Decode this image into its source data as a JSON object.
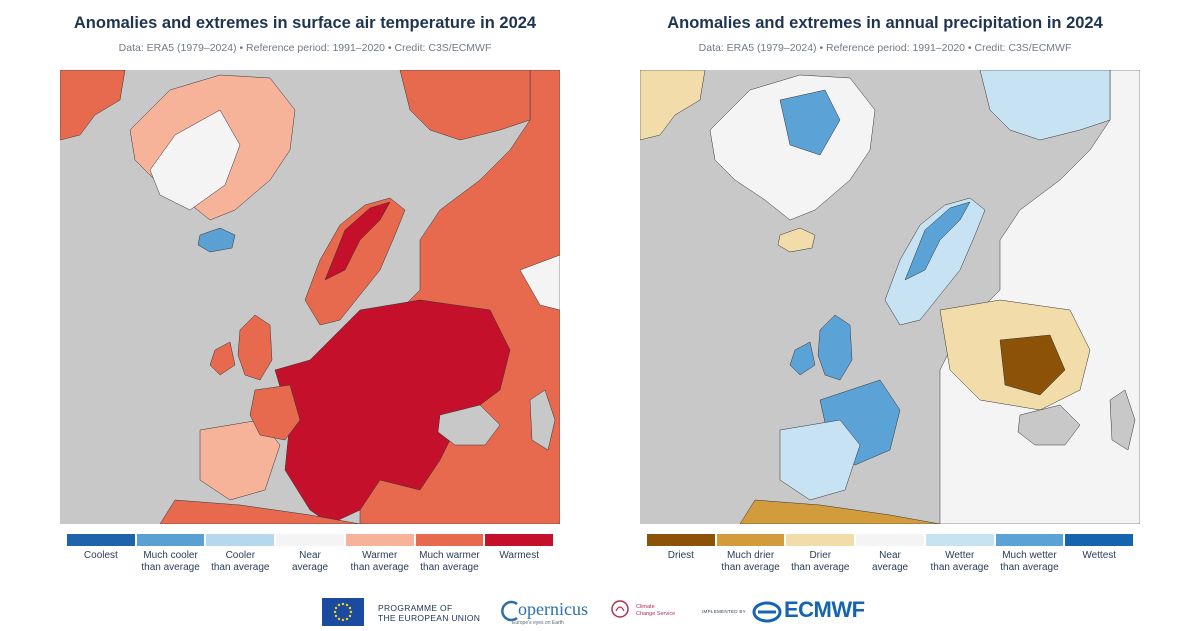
{
  "panels": [
    {
      "title": "Anomalies and extremes in surface air temperature in 2024",
      "subtitle": "Data: ERA5 (1979–2024) • Reference period: 1991–2020 • Credit: C3S/ECMWF",
      "legend": [
        {
          "label": "Coolest",
          "color": "#1f63ad"
        },
        {
          "label": "Much cooler\nthan average",
          "color": "#5aa0d2"
        },
        {
          "label": "Cooler\nthan average",
          "color": "#b6d8ee"
        },
        {
          "label": "Near\naverage",
          "color": "#f4f4f4"
        },
        {
          "label": "Warmer\nthan average",
          "color": "#f7b29a"
        },
        {
          "label": "Much warmer\nthan average",
          "color": "#e76a4e"
        },
        {
          "label": "Warmest",
          "color": "#c4102a"
        }
      ]
    },
    {
      "title": "Anomalies and extremes in annual precipitation in 2024",
      "subtitle": "Data: ERA5 (1979–2024) • Reference period: 1991–2020 • Credit: C3S/ECMWF",
      "legend": [
        {
          "label": "Driest",
          "color": "#8c5308"
        },
        {
          "label": "Much drier\nthan average",
          "color": "#d29c3c"
        },
        {
          "label": "Drier\nthan average",
          "color": "#f1dcaa"
        },
        {
          "label": "Near\naverage",
          "color": "#f4f4f4"
        },
        {
          "label": "Wetter\nthan average",
          "color": "#c6e2f3"
        },
        {
          "label": "Much wetter\nthan average",
          "color": "#5ba3d6"
        },
        {
          "label": "Wettest",
          "color": "#1664ae"
        }
      ]
    }
  ],
  "map_colors": {
    "sea": "#c8c8c8",
    "temp_base": "#e76a4e",
    "temp_light": "#f7b29a",
    "temp_extreme": "#c4102a",
    "temp_cool": "#5aa0d2",
    "near": "#f4f4f4",
    "prec_base": "#f4f4f4",
    "prec_wet": "#c6e2f3",
    "prec_much_wet": "#5ba3d6",
    "prec_dry": "#f1dcaa",
    "prec_much_dry": "#d29c3c",
    "prec_driest": "#8c5308"
  },
  "footer": {
    "eu_text": "PROGRAMME OF\nTHE EUROPEAN UNION",
    "copernicus": "opernicus",
    "copernicus_sub": "Europe's eyes on Earth",
    "c3s_text": "Climate\nChange Service",
    "implemented_by": "IMPLEMENTED BY",
    "ecmwf": "ECMWF"
  }
}
